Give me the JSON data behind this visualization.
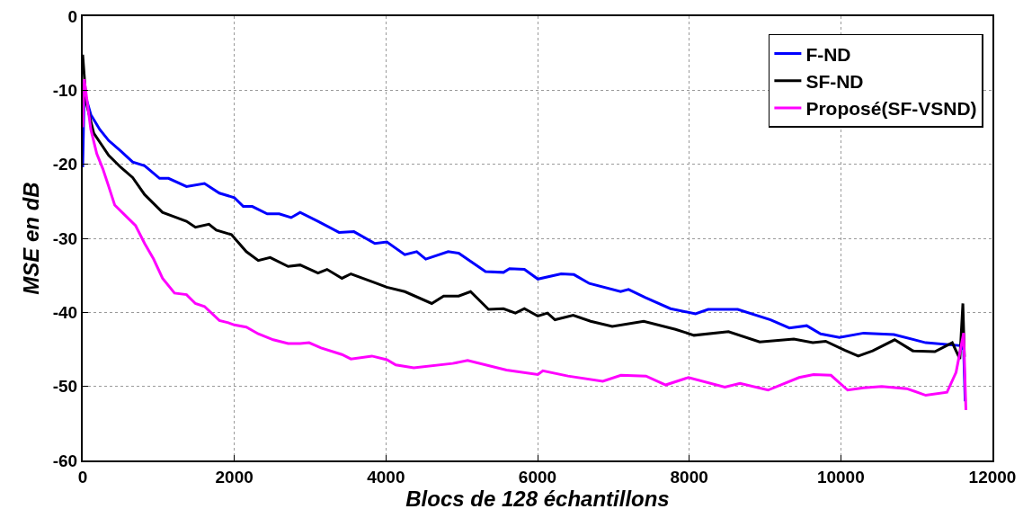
{
  "chart_data": {
    "type": "line",
    "xlabel": "Blocs de 128 échantillons",
    "ylabel": "MSE en dB",
    "xlim": [
      0,
      12000
    ],
    "ylim": [
      -60,
      0
    ],
    "xticks": [
      0,
      2000,
      4000,
      6000,
      8000,
      10000,
      12000
    ],
    "yticks": [
      -60,
      -50,
      -40,
      -30,
      -20,
      -10,
      0
    ],
    "grid": true,
    "legend": "top right",
    "line_style": "solid",
    "marker": "none",
    "series": [
      {
        "name": "F-ND",
        "color": "#0000ff",
        "x": [
          0,
          20,
          107,
          225,
          343,
          501,
          659,
          817,
          1014,
          1132,
          1369,
          1606,
          1803,
          2000,
          2118,
          2237,
          2434,
          2592,
          2749,
          2868,
          3104,
          3381,
          3578,
          3854,
          4012,
          4249,
          4406,
          4525,
          4821,
          4959,
          5314,
          5550,
          5630,
          5826,
          6004,
          6311,
          6480,
          6683,
          7095,
          7200,
          7422,
          7753,
          8083,
          8250,
          8640,
          9073,
          9321,
          9550,
          9734,
          9981,
          10300,
          10700,
          11120,
          11580,
          11620,
          11640
        ],
        "values": [
          -20.4,
          -10.2,
          -13.3,
          -15.3,
          -16.8,
          -18.2,
          -19.7,
          -20.2,
          -21.9,
          -21.9,
          -23.0,
          -22.6,
          -23.9,
          -24.5,
          -25.7,
          -25.7,
          -26.7,
          -26.7,
          -27.2,
          -26.5,
          -27.7,
          -29.2,
          -29.1,
          -30.7,
          -30.5,
          -32.2,
          -31.8,
          -32.8,
          -31.8,
          -32.0,
          -34.5,
          -34.6,
          -34.1,
          -34.2,
          -35.5,
          -34.8,
          -34.9,
          -36.1,
          -37.2,
          -36.9,
          -38.0,
          -39.5,
          -40.2,
          -39.6,
          -39.6,
          -41.0,
          -42.1,
          -41.8,
          -42.9,
          -43.4,
          -42.8,
          -43.0,
          -44.1,
          -44.5,
          -45.0,
          -52.0
        ]
      },
      {
        "name": "SF-ND",
        "color": "#000000",
        "x": [
          0,
          47,
          146,
          225,
          343,
          501,
          659,
          817,
          1053,
          1211,
          1369,
          1487,
          1665,
          1763,
          1961,
          2158,
          2316,
          2473,
          2710,
          2868,
          3104,
          3223,
          3420,
          3538,
          3854,
          4012,
          4249,
          4604,
          4761,
          4959,
          5116,
          5353,
          5550,
          5708,
          5826,
          6004,
          6130,
          6230,
          6470,
          6700,
          6985,
          7400,
          7820,
          8063,
          8518,
          8930,
          9380,
          9630,
          9800,
          10050,
          10230,
          10420,
          10710,
          10950,
          11240,
          11470,
          11570,
          11610,
          11630
        ],
        "values": [
          -5.2,
          -11.7,
          -15.8,
          -17.0,
          -18.8,
          -20.4,
          -21.8,
          -24.1,
          -26.5,
          -27.1,
          -27.7,
          -28.5,
          -28.1,
          -28.9,
          -29.5,
          -31.8,
          -33.0,
          -32.6,
          -33.8,
          -33.6,
          -34.7,
          -34.2,
          -35.4,
          -34.8,
          -36.0,
          -36.6,
          -37.2,
          -38.8,
          -37.8,
          -37.8,
          -37.2,
          -39.6,
          -39.5,
          -40.1,
          -39.5,
          -40.5,
          -40.1,
          -41.0,
          -40.4,
          -41.2,
          -41.9,
          -41.2,
          -42.3,
          -43.1,
          -42.6,
          -44.0,
          -43.6,
          -44.1,
          -43.9,
          -45.1,
          -45.9,
          -45.2,
          -43.7,
          -45.2,
          -45.3,
          -44.1,
          -46.3,
          -38.8,
          -46.0
        ]
      },
      {
        "name": "Proposé(SF-VSND)",
        "color": "#ff00ff",
        "x": [
          0,
          20,
          107,
          186,
          265,
          343,
          422,
          541,
          698,
          817,
          935,
          1053,
          1211,
          1369,
          1487,
          1606,
          1803,
          1921,
          2000,
          2158,
          2316,
          2513,
          2710,
          2868,
          2986,
          3144,
          3420,
          3538,
          3814,
          4012,
          4130,
          4367,
          4880,
          5077,
          5590,
          6004,
          6070,
          6400,
          6860,
          7100,
          7430,
          7690,
          7990,
          8470,
          8670,
          9040,
          9450,
          9640,
          9870,
          10090,
          10300,
          10540,
          10870,
          11120,
          11400,
          11520,
          11620,
          11650
        ],
        "values": [
          -15.0,
          -8.5,
          -15.3,
          -18.6,
          -20.6,
          -23.0,
          -25.5,
          -26.7,
          -28.3,
          -30.7,
          -32.8,
          -35.4,
          -37.4,
          -37.6,
          -38.8,
          -39.2,
          -41.1,
          -41.4,
          -41.7,
          -42.0,
          -42.9,
          -43.7,
          -44.2,
          -44.2,
          -44.1,
          -44.8,
          -45.7,
          -46.3,
          -45.9,
          -46.4,
          -47.1,
          -47.5,
          -46.9,
          -46.5,
          -47.8,
          -48.4,
          -47.9,
          -48.6,
          -49.3,
          -48.5,
          -48.6,
          -49.8,
          -48.8,
          -50.1,
          -49.6,
          -50.5,
          -48.8,
          -48.4,
          -48.5,
          -50.5,
          -50.2,
          -50.0,
          -50.3,
          -51.2,
          -50.8,
          -48.1,
          -42.8,
          -53.2
        ]
      }
    ]
  }
}
